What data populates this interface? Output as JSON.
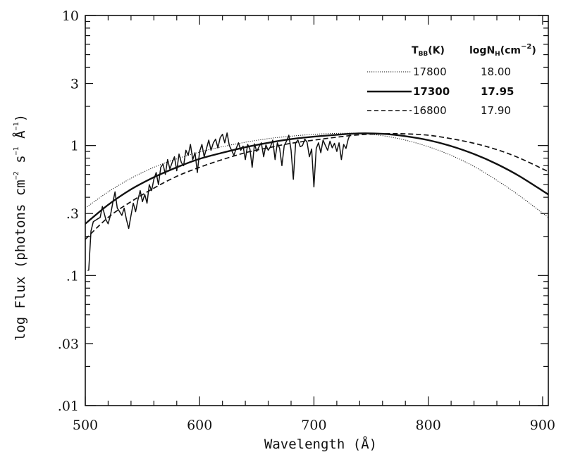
{
  "chart_data": {
    "type": "line",
    "xlabel": "Wavelength (Å)",
    "ylabel": {
      "prefix": "log Flux  (photons cm",
      "exp1": "−2",
      "mid1": " s",
      "exp2": "−1",
      "mid2": " Å",
      "exp3": "−1",
      "suffix": ")"
    },
    "xlim": [
      500,
      905
    ],
    "ylim": [
      0.01,
      10
    ],
    "yscale": "log",
    "x_ticks": [
      {
        "value": 500,
        "label": "500"
      },
      {
        "value": 600,
        "label": "600"
      },
      {
        "value": 700,
        "label": "700"
      },
      {
        "value": 800,
        "label": "800"
      },
      {
        "value": 900,
        "label": "900"
      }
    ],
    "y_ticks": [
      {
        "value": 0.01,
        "label": ".01"
      },
      {
        "value": 0.03,
        "label": ".03"
      },
      {
        "value": 0.1,
        "label": ".1"
      },
      {
        "value": 0.3,
        "label": ".3"
      },
      {
        "value": 1,
        "label": "1"
      },
      {
        "value": 3,
        "label": "3"
      },
      {
        "value": 10,
        "label": "10"
      }
    ],
    "legend": {
      "placement": "top-right",
      "header_tbb": {
        "main": "T",
        "sub": "BB",
        "tail": "(K)"
      },
      "header_nh": {
        "main": "logN",
        "sub": "H",
        "tail": "(cm",
        "exp": "−2",
        "end": ")"
      },
      "entries": [
        {
          "style": "dotted",
          "tbb": "17800",
          "lognh": "18.00"
        },
        {
          "style": "solid",
          "tbb": "17300",
          "lognh": "17.95"
        },
        {
          "style": "dashed",
          "tbb": "16800",
          "lognh": "17.90"
        }
      ]
    },
    "series": [
      {
        "style": "dotted",
        "x": [
          500,
          520,
          540,
          560,
          580,
          600,
          620,
          640,
          660,
          680,
          700,
          720,
          740,
          760,
          780,
          800,
          820,
          840,
          860,
          880,
          905
        ],
        "y": [
          0.33,
          0.44,
          0.56,
          0.68,
          0.79,
          0.89,
          0.98,
          1.06,
          1.13,
          1.18,
          1.22,
          1.24,
          1.24,
          1.19,
          1.1,
          0.98,
          0.84,
          0.69,
          0.54,
          0.41,
          0.28
        ]
      },
      {
        "style": "solid",
        "x": [
          500,
          520,
          540,
          560,
          580,
          600,
          620,
          640,
          660,
          680,
          700,
          720,
          740,
          760,
          780,
          800,
          820,
          840,
          860,
          880,
          905
        ],
        "y": [
          0.25,
          0.35,
          0.46,
          0.57,
          0.68,
          0.79,
          0.88,
          0.97,
          1.05,
          1.12,
          1.17,
          1.21,
          1.24,
          1.23,
          1.18,
          1.1,
          0.99,
          0.86,
          0.72,
          0.58,
          0.42
        ]
      },
      {
        "style": "dashed",
        "x": [
          500,
          520,
          540,
          560,
          580,
          600,
          620,
          640,
          660,
          680,
          700,
          720,
          740,
          760,
          780,
          800,
          820,
          840,
          860,
          880,
          905
        ],
        "y": [
          0.19,
          0.28,
          0.37,
          0.47,
          0.58,
          0.68,
          0.78,
          0.88,
          0.96,
          1.04,
          1.1,
          1.16,
          1.21,
          1.23,
          1.23,
          1.2,
          1.13,
          1.04,
          0.93,
          0.8,
          0.63
        ]
      },
      {
        "style": "observed",
        "x": [
          502,
          503,
          505,
          507,
          510,
          513,
          515,
          518,
          520,
          522,
          524,
          526,
          528,
          530,
          532,
          534,
          536,
          538,
          540,
          542,
          544,
          546,
          548,
          550,
          552,
          554,
          556,
          558,
          560,
          562,
          564,
          566,
          568,
          570,
          572,
          574,
          576,
          578,
          580,
          582,
          584,
          586,
          588,
          590,
          592,
          594,
          596,
          598,
          600,
          602,
          604,
          606,
          608,
          610,
          612,
          614,
          616,
          618,
          620,
          622,
          624,
          626,
          628,
          630,
          632,
          634,
          636,
          638,
          640,
          642,
          644,
          646,
          648,
          650,
          652,
          654,
          656,
          658,
          660,
          662,
          664,
          666,
          668,
          670,
          672,
          674,
          676,
          678,
          680,
          682,
          684,
          686,
          688,
          690,
          692,
          694,
          696,
          698,
          700,
          702,
          704,
          706,
          708,
          710,
          712,
          714,
          716,
          718,
          720,
          722,
          724,
          726,
          728,
          730,
          732
        ],
        "y": [
          0.11,
          0.11,
          0.22,
          0.26,
          0.27,
          0.28,
          0.34,
          0.27,
          0.25,
          0.29,
          0.36,
          0.44,
          0.33,
          0.31,
          0.29,
          0.33,
          0.27,
          0.23,
          0.29,
          0.36,
          0.31,
          0.38,
          0.45,
          0.37,
          0.42,
          0.36,
          0.5,
          0.45,
          0.55,
          0.62,
          0.5,
          0.68,
          0.72,
          0.6,
          0.78,
          0.66,
          0.74,
          0.82,
          0.64,
          0.86,
          0.74,
          0.7,
          0.92,
          0.84,
          1.02,
          0.78,
          0.88,
          0.62,
          0.9,
          1.02,
          0.82,
          0.95,
          1.1,
          0.92,
          1.05,
          1.12,
          0.96,
          1.15,
          1.22,
          1.05,
          1.25,
          1.0,
          0.92,
          0.84,
          0.95,
          1.05,
          0.92,
          0.99,
          0.78,
          1.02,
          0.94,
          0.68,
          1.03,
          0.9,
          0.98,
          1.05,
          0.82,
          1.01,
          0.92,
          0.98,
          1.1,
          0.78,
          1.05,
          0.95,
          0.7,
          1.0,
          1.08,
          1.2,
          0.92,
          0.55,
          1.05,
          1.1,
          0.98,
          1.0,
          1.12,
          1.06,
          0.82,
          0.94,
          0.48,
          0.95,
          1.05,
          0.88,
          1.1,
          1.0,
          0.92,
          1.08,
          0.96,
          1.04,
          0.9,
          1.05,
          0.78,
          1.02,
          0.95,
          1.12,
          1.24
        ]
      }
    ]
  }
}
